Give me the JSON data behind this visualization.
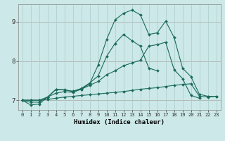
{
  "xlabel": "Humidex (Indice chaleur)",
  "ylabel": "",
  "background_color": "#cce8e8",
  "line_color": "#1a6b5a",
  "grid_color": "#aacccc",
  "xlim": [
    -0.5,
    23.5
  ],
  "ylim": [
    6.75,
    9.45
  ],
  "xticks": [
    0,
    1,
    2,
    3,
    4,
    5,
    6,
    7,
    8,
    9,
    10,
    11,
    12,
    13,
    14,
    15,
    16,
    17,
    18,
    19,
    20,
    21,
    22,
    23
  ],
  "yticks": [
    7,
    8,
    9
  ],
  "series": [
    {
      "x": [
        0,
        1,
        2,
        3,
        4,
        5,
        6,
        7,
        8,
        9,
        10,
        11,
        12,
        13,
        14,
        15,
        16,
        17,
        18,
        19,
        20,
        21,
        22,
        23
      ],
      "y": [
        7.0,
        6.88,
        6.9,
        7.08,
        7.27,
        7.27,
        7.22,
        7.28,
        7.42,
        7.9,
        8.55,
        9.05,
        9.22,
        9.3,
        9.18,
        8.68,
        8.72,
        9.02,
        8.6,
        7.82,
        7.6,
        7.15,
        7.1,
        7.1
      ]
    },
    {
      "x": [
        0,
        1,
        2,
        3,
        4,
        5,
        6,
        7,
        8,
        9,
        10,
        11,
        12,
        13,
        14,
        15,
        16
      ],
      "y": [
        7.0,
        6.95,
        6.95,
        7.08,
        7.28,
        7.26,
        7.23,
        7.3,
        7.44,
        7.62,
        8.12,
        8.45,
        8.68,
        8.52,
        8.38,
        7.82,
        7.75
      ]
    },
    {
      "x": [
        0,
        1,
        2,
        3,
        4,
        5,
        6,
        7,
        8,
        9,
        10,
        11,
        12,
        13,
        14,
        15,
        16,
        17,
        18,
        19,
        20,
        21
      ],
      "y": [
        7.0,
        7.0,
        7.0,
        7.08,
        7.18,
        7.22,
        7.2,
        7.28,
        7.38,
        7.48,
        7.65,
        7.75,
        7.88,
        7.95,
        8.02,
        8.38,
        8.42,
        8.48,
        7.78,
        7.55,
        7.12,
        7.05
      ]
    },
    {
      "x": [
        0,
        1,
        2,
        3,
        4,
        5,
        6,
        7,
        8,
        9,
        10,
        11,
        12,
        13,
        14,
        15,
        16,
        17,
        18,
        19,
        20,
        21,
        22,
        23
      ],
      "y": [
        7.0,
        7.0,
        7.0,
        7.02,
        7.05,
        7.08,
        7.1,
        7.12,
        7.14,
        7.16,
        7.18,
        7.2,
        7.22,
        7.25,
        7.28,
        7.3,
        7.32,
        7.35,
        7.38,
        7.4,
        7.42,
        7.1,
        7.08,
        7.1
      ]
    }
  ]
}
